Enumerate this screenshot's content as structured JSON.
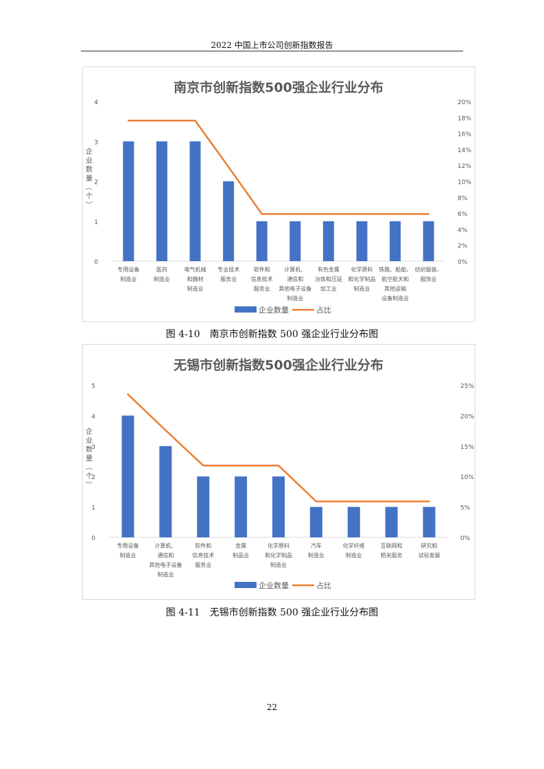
{
  "header": {
    "title": "2022 中国上市公司创新指数报告"
  },
  "colors": {
    "bar": "#4472c4",
    "line": "#ed7d31",
    "text": "#595959",
    "grid": "#d9d9d9"
  },
  "chart_data": [
    {
      "type": "bar",
      "title": "南京市创新指数500强企业行业分布",
      "ylabel": "企业数量（个）",
      "ylim": [
        0,
        4
      ],
      "yticks": [
        "0",
        "1",
        "2",
        "3",
        "4"
      ],
      "y2lim": [
        0,
        20
      ],
      "y2ticks": [
        "0%",
        "2%",
        "4%",
        "6%",
        "8%",
        "10%",
        "12%",
        "14%",
        "16%",
        "18%",
        "20%"
      ],
      "categories": [
        [
          "专用设备",
          "制造业"
        ],
        [
          "医药",
          "制造业"
        ],
        [
          "电气机械",
          "和器材",
          "制造业"
        ],
        [
          "专业技术",
          "服务业"
        ],
        [
          "软件和",
          "信息技术",
          "服务业"
        ],
        [
          "计算机、",
          "通信和",
          "其他电子设备",
          "制造业"
        ],
        [
          "有色金属",
          "冶炼和压延",
          "加工业"
        ],
        [
          "化学原料",
          "和化学制品",
          "制造业"
        ],
        [
          "铁路、船舶、",
          "航空航天和",
          "其他运输",
          "设备制造业"
        ],
        [
          "纺织服装、",
          "服饰业"
        ]
      ],
      "series": [
        {
          "name": "企业数量",
          "type": "bar",
          "values": [
            3,
            3,
            3,
            2,
            1,
            1,
            1,
            1,
            1,
            1
          ]
        },
        {
          "name": "占比",
          "type": "line",
          "axis": "right",
          "values": [
            17.6,
            17.6,
            17.6,
            11.8,
            5.9,
            5.9,
            5.9,
            5.9,
            5.9,
            5.9
          ]
        }
      ],
      "legend": "bottom"
    },
    {
      "type": "bar",
      "title": "无锡市创新指数500强企业行业分布",
      "ylabel": "企业数量（个）",
      "ylim": [
        0,
        5
      ],
      "yticks": [
        "0",
        "1",
        "2",
        "3",
        "4",
        "5"
      ],
      "y2lim": [
        0,
        25
      ],
      "y2ticks": [
        "0%",
        "5%",
        "10%",
        "15%",
        "20%",
        "25%"
      ],
      "categories": [
        [
          "专用设备",
          "制造业"
        ],
        [
          "计算机、",
          "通信和",
          "其他电子设备",
          "制造业"
        ],
        [
          "软件和",
          "信息技术",
          "服务业"
        ],
        [
          "金属",
          "制品业"
        ],
        [
          "化学原料",
          "和化学制品",
          "制造业"
        ],
        [
          "汽车",
          "制造业"
        ],
        [
          "化学纤维",
          "制造业"
        ],
        [
          "互联网和",
          "相关服务"
        ],
        [
          "研究和",
          "试验发展"
        ]
      ],
      "series": [
        {
          "name": "企业数量",
          "type": "bar",
          "values": [
            4,
            3,
            2,
            2,
            2,
            1,
            1,
            1,
            1
          ]
        },
        {
          "name": "占比",
          "type": "line",
          "axis": "right",
          "values": [
            23.5,
            17.6,
            11.8,
            11.8,
            11.8,
            5.9,
            5.9,
            5.9,
            5.9
          ]
        }
      ],
      "legend": "bottom"
    }
  ],
  "captions": [
    "图 4-10　南京市创新指数 500 强企业行业分布图",
    "图 4-11　无锡市创新指数 500 强企业行业分布图"
  ],
  "page_number": "22"
}
